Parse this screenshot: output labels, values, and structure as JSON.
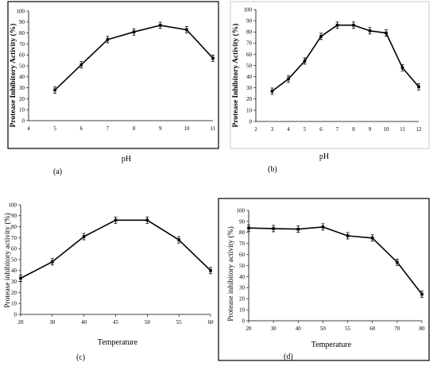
{
  "chart_data": [
    {
      "panel": "(a)",
      "type": "line",
      "xlabel": "pH",
      "ylabel": "Protease Inhibitory Activity (%)",
      "x": [
        5,
        6,
        7,
        8,
        9,
        10,
        11
      ],
      "y": [
        28,
        51,
        74,
        81,
        87,
        83,
        57
      ],
      "xlim": [
        4,
        11
      ],
      "ylim": [
        0,
        100
      ],
      "xticks": [
        "4",
        "5",
        "6",
        "7",
        "8",
        "9",
        "10",
        "11"
      ],
      "yticks": [
        "0",
        "10",
        "20",
        "30",
        "40",
        "50",
        "60",
        "70",
        "80",
        "90",
        "100"
      ],
      "color": "#000000"
    },
    {
      "panel": "(b)",
      "type": "line",
      "xlabel": "pH",
      "ylabel": "Protease Inhibitory Activity (%)",
      "x": [
        3,
        4,
        5,
        6,
        7,
        8,
        9,
        10,
        11,
        12
      ],
      "y": [
        27,
        38,
        54,
        76,
        86,
        86,
        81,
        79,
        48,
        31
      ],
      "xlim": [
        2,
        12
      ],
      "ylim": [
        0,
        100
      ],
      "xticks": [
        "2",
        "3",
        "4",
        "5",
        "6",
        "7",
        "8",
        "9",
        "10",
        "11",
        "12"
      ],
      "yticks": [
        "0",
        "10",
        "20",
        "30",
        "40",
        "50",
        "60",
        "70",
        "80",
        "90",
        "100"
      ],
      "color": "#000000"
    },
    {
      "panel": "(c)",
      "type": "line",
      "xlabel": "Temperature",
      "ylabel": "Protease inhibitory activity (%)",
      "categories": [
        "20",
        "30",
        "40",
        "45",
        "50",
        "55",
        "60"
      ],
      "values": [
        33,
        48,
        71,
        86,
        86,
        68,
        40
      ],
      "ylim": [
        0,
        100
      ],
      "yticks": [
        "0",
        "10",
        "20",
        "30",
        "40",
        "50",
        "60",
        "70",
        "80",
        "90",
        "100"
      ],
      "color": "#000000"
    },
    {
      "panel": "(d)",
      "type": "line",
      "xlabel": "Temperature",
      "ylabel": "Protease inhibitory activity (%)",
      "categories": [
        "20",
        "30",
        "40",
        "50",
        "55",
        "60",
        "70",
        "80"
      ],
      "values": [
        84,
        83.5,
        83,
        85,
        77,
        75,
        53,
        24
      ],
      "ylim": [
        0,
        100
      ],
      "yticks": [
        "0",
        "10",
        "20",
        "30",
        "40",
        "50",
        "60",
        "70",
        "80",
        "90",
        "100"
      ],
      "color": "#000000"
    }
  ]
}
